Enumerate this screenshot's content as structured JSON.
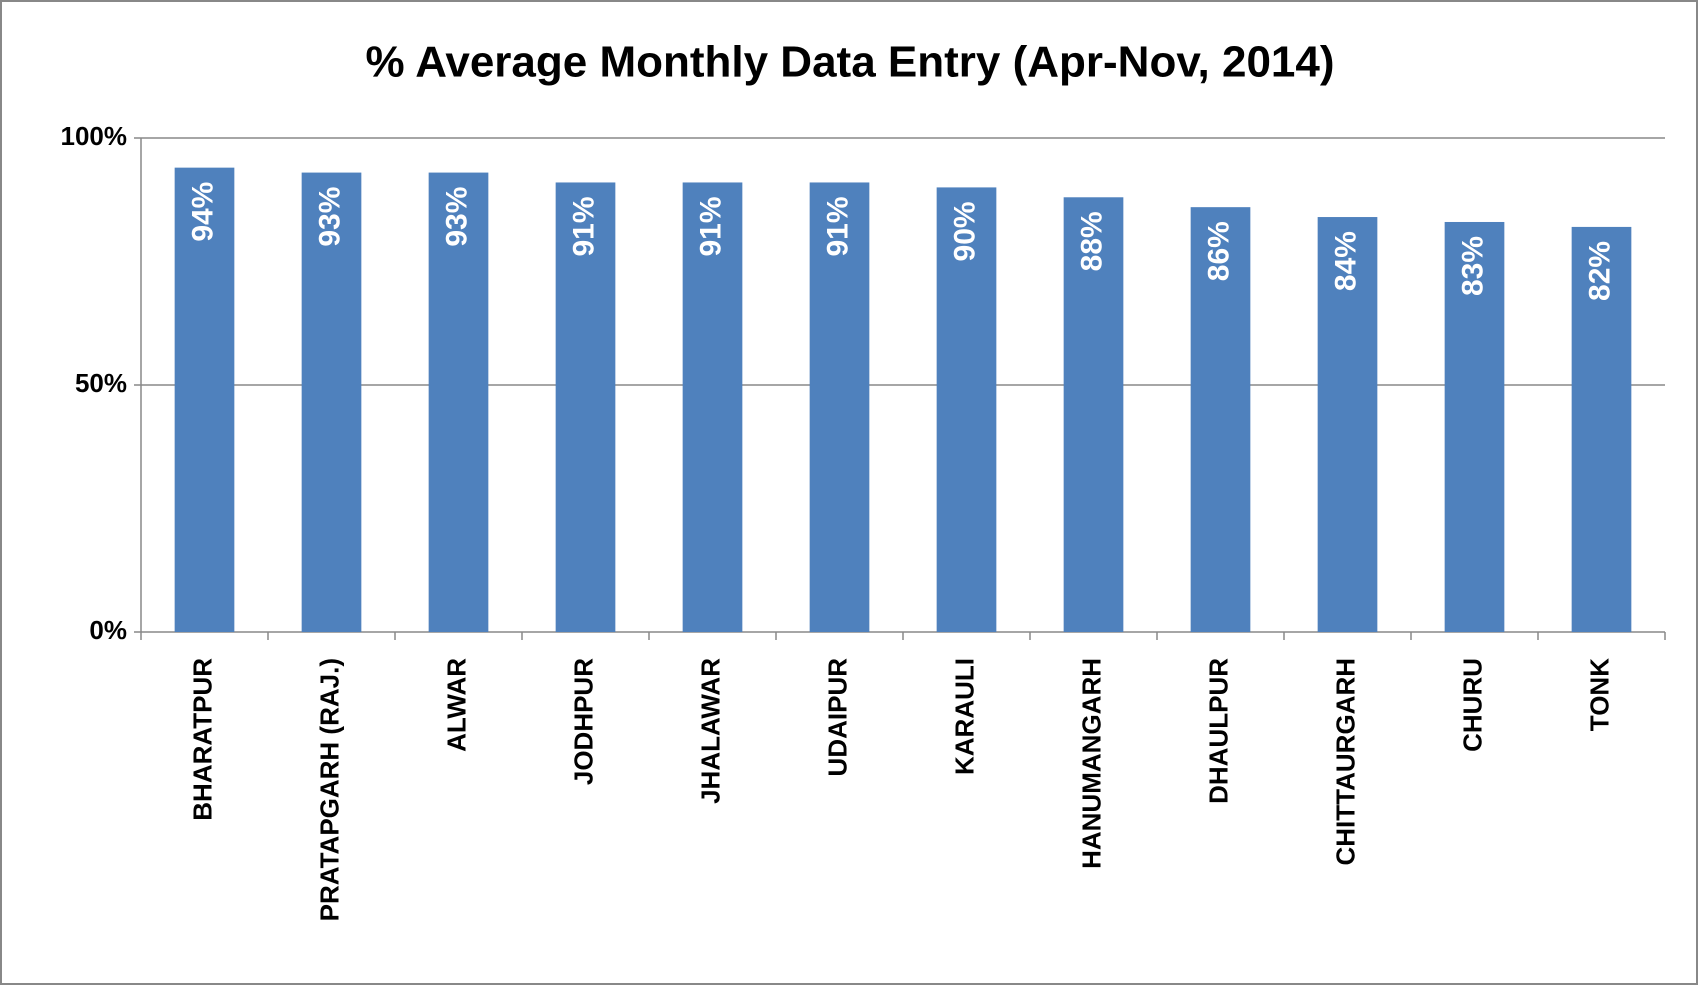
{
  "chart_data": {
    "type": "bar",
    "title": "% Average Monthly Data Entry (Apr-Nov, 2014)",
    "categories": [
      "BHARATPUR",
      "PRATAPGARH (RAJ.)",
      "ALWAR",
      "JODHPUR",
      "JHALAWAR",
      "UDAIPUR",
      "KARAULI",
      "HANUMANGARH",
      "DHAULPUR",
      "CHITTAURGARH",
      "CHURU",
      "TONK"
    ],
    "values": [
      94,
      93,
      93,
      91,
      91,
      91,
      90,
      88,
      86,
      84,
      83,
      82
    ],
    "value_labels": [
      "94%",
      "93%",
      "93%",
      "91%",
      "91%",
      "91%",
      "90%",
      "88%",
      "86%",
      "84%",
      "83%",
      "82%"
    ],
    "color": "#4f81bd",
    "ylim": [
      0,
      100
    ],
    "yticks": [
      {
        "value": 0,
        "label": "0%"
      },
      {
        "value": 50,
        "label": "50%"
      },
      {
        "value": 100,
        "label": "100%"
      }
    ],
    "grid": true
  }
}
